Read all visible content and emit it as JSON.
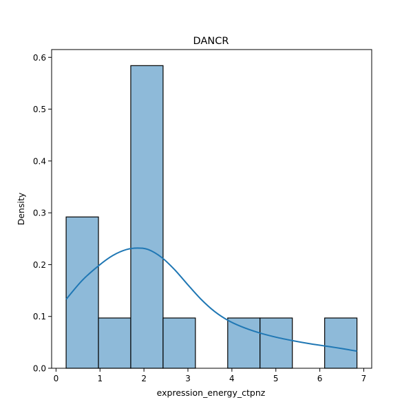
{
  "chart_data": {
    "type": "bar",
    "title": "DANCR",
    "xlabel": "expression_energy_ctpnz",
    "ylabel": "Density",
    "xlim": [
      -0.1,
      7.18
    ],
    "ylim": [
      0,
      0.615
    ],
    "xticks": [
      0,
      1,
      2,
      3,
      4,
      5,
      6,
      7
    ],
    "yticks": [
      0.0,
      0.1,
      0.2,
      0.3,
      0.4,
      0.5,
      0.6
    ],
    "bins": [
      {
        "x0": 0.23,
        "x1": 0.965,
        "value": 0.292
      },
      {
        "x0": 0.965,
        "x1": 1.7,
        "value": 0.097
      },
      {
        "x0": 1.7,
        "x1": 2.435,
        "value": 0.584
      },
      {
        "x0": 2.435,
        "x1": 3.17,
        "value": 0.097
      },
      {
        "x0": 3.17,
        "x1": 3.905,
        "value": 0.0
      },
      {
        "x0": 3.905,
        "x1": 4.64,
        "value": 0.097
      },
      {
        "x0": 4.64,
        "x1": 5.375,
        "value": 0.097
      },
      {
        "x0": 5.375,
        "x1": 6.11,
        "value": 0.0
      },
      {
        "x0": 6.11,
        "x1": 6.845,
        "value": 0.097
      }
    ],
    "kde": {
      "x": [
        0.23,
        0.6,
        1.0,
        1.3,
        1.6,
        1.85,
        2.1,
        2.4,
        2.7,
        3.0,
        3.3,
        3.6,
        3.9,
        4.2,
        4.6,
        5.0,
        5.4,
        5.8,
        6.2,
        6.5,
        6.845
      ],
      "y": [
        0.133,
        0.17,
        0.2,
        0.218,
        0.229,
        0.232,
        0.229,
        0.214,
        0.19,
        0.161,
        0.133,
        0.11,
        0.093,
        0.081,
        0.069,
        0.06,
        0.053,
        0.047,
        0.042,
        0.038,
        0.033
      ]
    },
    "colors": {
      "bar_fill": "#8ebad9",
      "bar_edge": "#000000",
      "kde_line": "#1f77b4"
    },
    "grid": false
  }
}
